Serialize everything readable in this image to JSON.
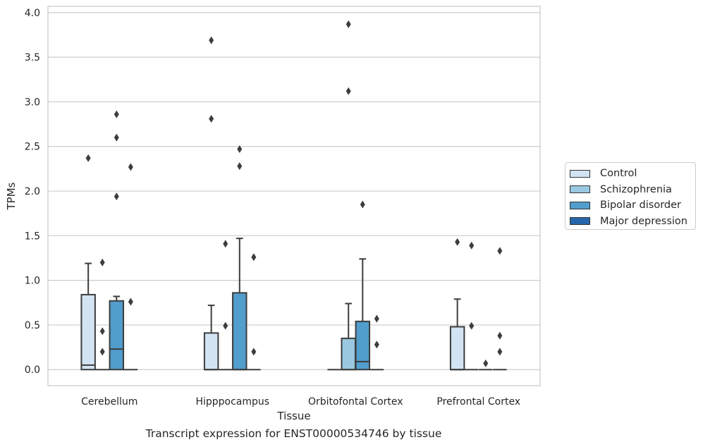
{
  "caption": "Transcript expression for ENST00000534746 by tissue",
  "chart_data": {
    "type": "box",
    "xlabel": "Tissue",
    "ylabel": "TPMs",
    "ylim": [
      -0.18,
      4.07
    ],
    "yticks": [
      0.0,
      0.5,
      1.0,
      1.5,
      2.0,
      2.5,
      3.0,
      3.5,
      4.0
    ],
    "ytick_labels": [
      "0.0",
      "0.5",
      "1.0",
      "1.5",
      "2.0",
      "2.5",
      "3.0",
      "3.5",
      "4.0"
    ],
    "grid": "horizontal",
    "legend_position": "right",
    "categories": [
      "Cerebellum",
      "Hipppocampus",
      "Orbitofontal Cortex",
      "Prefrontal Cortex"
    ],
    "series": [
      {
        "name": "Control",
        "color": "#d2e3f3"
      },
      {
        "name": "Schizophrenia",
        "color": "#9ac8e0"
      },
      {
        "name": "Bipolar disorder",
        "color": "#519dcc"
      },
      {
        "name": "Major depression",
        "color": "#2666ab"
      }
    ],
    "boxes": [
      {
        "category": 0,
        "series": 0,
        "q1": 0.0,
        "median": 0.05,
        "q3": 0.84,
        "whisker_low": 0.0,
        "whisker_high": 1.19,
        "outliers": [
          2.37
        ]
      },
      {
        "category": 0,
        "series": 1,
        "q1": 0.0,
        "median": 0.0,
        "q3": 0.0,
        "whisker_low": 0.0,
        "whisker_high": 0.0,
        "outliers": [
          0.2,
          0.43,
          1.2
        ]
      },
      {
        "category": 0,
        "series": 2,
        "q1": 0.0,
        "median": 0.23,
        "q3": 0.77,
        "whisker_low": 0.0,
        "whisker_high": 0.82,
        "outliers": [
          1.94,
          2.6,
          2.86
        ]
      },
      {
        "category": 0,
        "series": 3,
        "q1": 0.0,
        "median": 0.0,
        "q3": 0.0,
        "whisker_low": 0.0,
        "whisker_high": 0.0,
        "outliers": [
          0.76,
          2.27
        ]
      },
      {
        "category": 1,
        "series": 0,
        "q1": 0.0,
        "median": 0.0,
        "q3": 0.41,
        "whisker_low": 0.0,
        "whisker_high": 0.72,
        "outliers": [
          2.81,
          3.69
        ]
      },
      {
        "category": 1,
        "series": 1,
        "q1": 0.0,
        "median": 0.0,
        "q3": 0.0,
        "whisker_low": 0.0,
        "whisker_high": 0.0,
        "outliers": [
          0.49,
          1.41
        ]
      },
      {
        "category": 1,
        "series": 2,
        "q1": 0.0,
        "median": 0.0,
        "q3": 0.86,
        "whisker_low": 0.0,
        "whisker_high": 1.47,
        "outliers": [
          2.28,
          2.47
        ]
      },
      {
        "category": 1,
        "series": 3,
        "q1": 0.0,
        "median": 0.0,
        "q3": 0.0,
        "whisker_low": 0.0,
        "whisker_high": 0.0,
        "outliers": [
          0.2,
          1.26
        ]
      },
      {
        "category": 2,
        "series": 0,
        "q1": 0.0,
        "median": 0.0,
        "q3": 0.0,
        "whisker_low": 0.0,
        "whisker_high": 0.0,
        "outliers": []
      },
      {
        "category": 2,
        "series": 1,
        "q1": 0.0,
        "median": 0.0,
        "q3": 0.35,
        "whisker_low": 0.0,
        "whisker_high": 0.74,
        "outliers": [
          3.12,
          3.87
        ]
      },
      {
        "category": 2,
        "series": 2,
        "q1": 0.0,
        "median": 0.09,
        "q3": 0.54,
        "whisker_low": 0.0,
        "whisker_high": 1.24,
        "outliers": [
          1.85
        ]
      },
      {
        "category": 2,
        "series": 3,
        "q1": 0.0,
        "median": 0.0,
        "q3": 0.0,
        "whisker_low": 0.0,
        "whisker_high": 0.0,
        "outliers": [
          0.28,
          0.57
        ]
      },
      {
        "category": 3,
        "series": 0,
        "q1": 0.0,
        "median": 0.0,
        "q3": 0.48,
        "whisker_low": 0.0,
        "whisker_high": 0.79,
        "outliers": [
          1.43
        ]
      },
      {
        "category": 3,
        "series": 1,
        "q1": 0.0,
        "median": 0.0,
        "q3": 0.0,
        "whisker_low": 0.0,
        "whisker_high": 0.0,
        "outliers": [
          0.49,
          1.39
        ]
      },
      {
        "category": 3,
        "series": 2,
        "q1": 0.0,
        "median": 0.0,
        "q3": 0.0,
        "whisker_low": 0.0,
        "whisker_high": 0.0,
        "outliers": [
          0.07
        ]
      },
      {
        "category": 3,
        "series": 3,
        "q1": 0.0,
        "median": 0.0,
        "q3": 0.0,
        "whisker_low": 0.0,
        "whisker_high": 0.0,
        "outliers": [
          0.2,
          0.38,
          1.33
        ]
      }
    ]
  }
}
